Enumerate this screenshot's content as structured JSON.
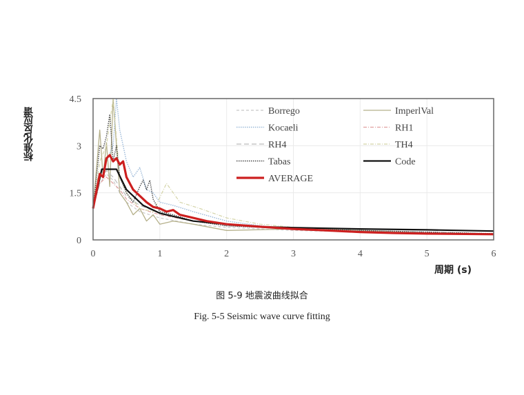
{
  "chart_data": {
    "type": "line",
    "title": "",
    "xlabel": "周期 (s)",
    "ylabel": "标准化反应谱",
    "xlim": [
      0,
      6
    ],
    "ylim": [
      0,
      4.5
    ],
    "xticks": [
      "0",
      "1",
      "2",
      "3",
      "4",
      "5",
      "6"
    ],
    "yticks": [
      "0",
      "1.5",
      "3",
      "4.5"
    ],
    "grid": true,
    "legend_position": "upper right (inside, 2 columns)",
    "series": [
      {
        "name": "Borrego",
        "style": "dashed",
        "color": "#c8c8c8",
        "x": [
          0,
          0.1,
          0.2,
          0.3,
          0.4,
          0.5,
          0.7,
          1.0,
          1.5,
          2.0,
          3.0,
          4.0,
          5.0,
          6.0
        ],
        "y": [
          1.0,
          1.8,
          2.1,
          1.9,
          1.5,
          1.2,
          0.9,
          0.7,
          0.5,
          0.4,
          0.3,
          0.25,
          0.2,
          0.18
        ]
      },
      {
        "name": "ImperlVal",
        "style": "solid",
        "color": "#b5b08a",
        "x": [
          0,
          0.1,
          0.15,
          0.2,
          0.25,
          0.3,
          0.4,
          0.5,
          0.6,
          0.7,
          0.8,
          0.9,
          1.0,
          1.2,
          1.5,
          2.0,
          3.0,
          4.0,
          5.0,
          6.0
        ],
        "y": [
          1.0,
          3.5,
          2.0,
          3.1,
          1.7,
          4.5,
          1.5,
          1.2,
          0.8,
          1.0,
          0.6,
          0.8,
          0.5,
          0.6,
          0.5,
          0.3,
          0.35,
          0.3,
          0.22,
          0.2
        ]
      },
      {
        "name": "Kocaeli",
        "style": "dotted",
        "color": "#9ab8d8",
        "x": [
          0,
          0.1,
          0.2,
          0.3,
          0.35,
          0.4,
          0.45,
          0.5,
          0.6,
          0.7,
          0.8,
          0.9,
          1.0,
          1.2,
          1.5,
          2.0,
          2.5,
          3.0,
          4.0,
          5.0,
          6.0
        ],
        "y": [
          1.0,
          2.0,
          2.5,
          3.0,
          4.5,
          3.5,
          3.0,
          2.5,
          2.0,
          2.3,
          1.6,
          1.5,
          1.2,
          1.1,
          0.9,
          0.6,
          0.45,
          0.35,
          0.25,
          0.2,
          0.18
        ]
      },
      {
        "name": "RH1",
        "style": "dash-dot",
        "color": "#e0a0a0",
        "x": [
          0,
          0.1,
          0.2,
          0.3,
          0.4,
          0.5,
          0.7,
          1.0,
          1.5,
          2.0,
          3.0,
          4.0,
          5.0,
          6.0
        ],
        "y": [
          1.0,
          1.8,
          2.0,
          1.8,
          1.6,
          1.3,
          1.0,
          0.8,
          0.6,
          0.45,
          0.35,
          0.28,
          0.22,
          0.2
        ]
      },
      {
        "name": "RH4",
        "style": "long-dash",
        "color": "#bbbbbb",
        "x": [
          0,
          0.1,
          0.2,
          0.3,
          0.4,
          0.5,
          0.7,
          1.0,
          1.5,
          2.0,
          3.0,
          4.0,
          5.0,
          6.0
        ],
        "y": [
          1.0,
          2.0,
          2.2,
          2.0,
          1.7,
          1.4,
          1.1,
          0.85,
          0.6,
          0.45,
          0.35,
          0.3,
          0.25,
          0.2
        ]
      },
      {
        "name": "TH4",
        "style": "dash-dot",
        "color": "#d4d4a8",
        "x": [
          0,
          0.1,
          0.2,
          0.3,
          0.4,
          0.5,
          0.7,
          0.9,
          1.1,
          1.3,
          1.6,
          2.0,
          2.5,
          3.0,
          4.0,
          5.0,
          6.0
        ],
        "y": [
          1.0,
          2.5,
          3.0,
          4.5,
          2.0,
          1.5,
          1.0,
          0.9,
          1.8,
          1.2,
          1.0,
          0.7,
          0.5,
          0.4,
          0.3,
          0.22,
          0.2
        ]
      },
      {
        "name": "Tabas",
        "style": "dotted",
        "color": "#444444",
        "x": [
          0,
          0.1,
          0.15,
          0.2,
          0.25,
          0.3,
          0.35,
          0.4,
          0.5,
          0.6,
          0.7,
          0.75,
          0.8,
          0.85,
          0.9,
          1.0,
          1.2,
          1.5,
          2.0,
          2.5,
          3.0,
          4.0,
          5.0,
          6.0
        ],
        "y": [
          1.0,
          3.0,
          2.9,
          3.3,
          4.0,
          2.5,
          3.0,
          2.0,
          1.5,
          1.2,
          1.7,
          1.9,
          1.6,
          1.9,
          1.3,
          0.9,
          0.8,
          0.6,
          0.45,
          0.4,
          0.35,
          0.3,
          0.25,
          0.2
        ]
      },
      {
        "name": "Code",
        "style": "solid",
        "color": "#111111",
        "x": [
          0,
          0.13,
          0.35,
          0.5,
          0.75,
          1.0,
          1.5,
          2.0,
          2.5,
          3.0,
          4.0,
          5.0,
          6.0
        ],
        "y": [
          1.0,
          2.25,
          2.25,
          1.6,
          1.1,
          0.85,
          0.6,
          0.5,
          0.42,
          0.39,
          0.35,
          0.32,
          0.28
        ]
      },
      {
        "name": "AVERAGE",
        "style": "solid-thick",
        "color": "#cc1f1f",
        "x": [
          0,
          0.1,
          0.15,
          0.2,
          0.25,
          0.3,
          0.35,
          0.4,
          0.45,
          0.5,
          0.6,
          0.7,
          0.8,
          0.9,
          1.0,
          1.1,
          1.2,
          1.3,
          1.5,
          1.7,
          2.0,
          2.5,
          3.0,
          3.5,
          4.0,
          4.5,
          5.0,
          6.0
        ],
        "y": [
          1.0,
          2.1,
          2.0,
          2.6,
          2.7,
          2.5,
          2.6,
          2.4,
          2.5,
          2.0,
          1.6,
          1.4,
          1.2,
          1.05,
          1.0,
          0.9,
          0.95,
          0.8,
          0.7,
          0.6,
          0.5,
          0.42,
          0.35,
          0.3,
          0.25,
          0.22,
          0.2,
          0.18
        ]
      }
    ]
  },
  "axis": {
    "y_label": "标准化反应谱",
    "x_label": "周期 (s)",
    "x_ticks": [
      "0",
      "1",
      "2",
      "3",
      "4",
      "5",
      "6"
    ],
    "y_ticks": [
      "0",
      "1.5",
      "3",
      "4.5"
    ]
  },
  "legend": {
    "items": [
      "Borrego",
      "ImperlVal",
      "Kocaeli",
      "RH1",
      "RH4",
      "TH4",
      "Tabas",
      "Code",
      "AVERAGE"
    ]
  },
  "caption": {
    "cn": "图 5-9  地震波曲线拟合",
    "en": "Fig. 5-5 Seismic wave curve fitting"
  }
}
